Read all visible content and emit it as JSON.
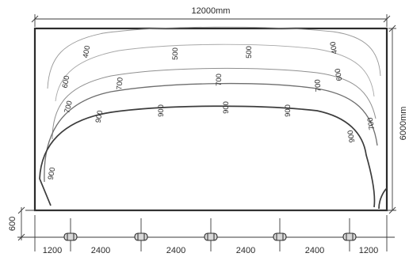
{
  "dimensions": {
    "width": "12000mm",
    "height": "6000mm",
    "offset": "600",
    "spacing": [
      "1200",
      "2400",
      "2400",
      "2400",
      "2400",
      "1200"
    ]
  },
  "contour_labels": {
    "c400": "400",
    "c500": "500",
    "c600": "600",
    "c700": "700",
    "c900": "900"
  },
  "luminaire_count": 5
}
